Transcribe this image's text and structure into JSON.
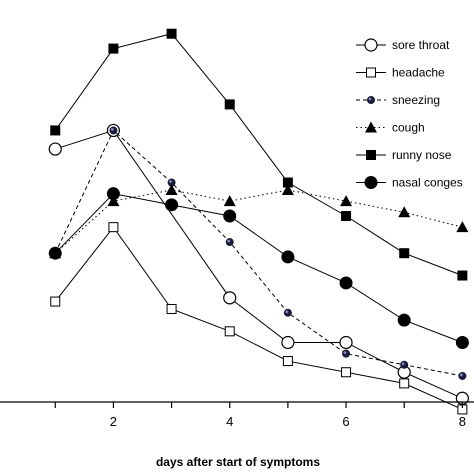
{
  "chart_data": {
    "type": "line",
    "xlabel": "days after start of symptoms",
    "ylabel": "",
    "title": "",
    "xlim": [
      0.05,
      8.2
    ],
    "ylim": [
      0,
      100
    ],
    "x_ticks": [
      2,
      4,
      6,
      8
    ],
    "x_tick_labels": [
      "2",
      "4",
      "6",
      "8"
    ],
    "grid": false,
    "legend_position": "top-right",
    "series": [
      {
        "name": "sore throat",
        "marker": "open-circle",
        "line": "solid",
        "x": [
          1,
          2,
          4,
          5,
          6,
          7,
          8
        ],
        "y": [
          68,
          73,
          28,
          16,
          16,
          8,
          1
        ]
      },
      {
        "name": "headache",
        "marker": "open-square",
        "line": "solid",
        "x": [
          1,
          2,
          3,
          4,
          5,
          6,
          7,
          8
        ],
        "y": [
          27,
          47,
          25,
          19,
          11,
          8,
          5,
          -2
        ]
      },
      {
        "name": "sneezing",
        "marker": "small-dot",
        "line": "dashed",
        "x": [
          1,
          2,
          3,
          4,
          5,
          6,
          7,
          8
        ],
        "y": [
          40,
          73,
          59,
          43,
          24,
          13,
          10,
          7
        ]
      },
      {
        "name": "cough",
        "marker": "filled-triangle",
        "line": "dotted",
        "x": [
          1,
          2,
          3,
          4,
          5,
          6,
          7,
          8
        ],
        "y": [
          40,
          54,
          57,
          54,
          57,
          54,
          51,
          47
        ]
      },
      {
        "name": "runny nose",
        "marker": "filled-square",
        "line": "solid",
        "x": [
          1,
          2,
          3,
          4,
          5,
          6,
          7,
          8
        ],
        "y": [
          73,
          95,
          99,
          80,
          59,
          50,
          40,
          34
        ]
      },
      {
        "name": "nasal conges",
        "marker": "filled-circle",
        "line": "solid",
        "x": [
          1,
          2,
          3,
          4,
          5,
          6,
          7,
          8
        ],
        "y": [
          40,
          56,
          53,
          50,
          39,
          32,
          22,
          16
        ]
      }
    ]
  }
}
